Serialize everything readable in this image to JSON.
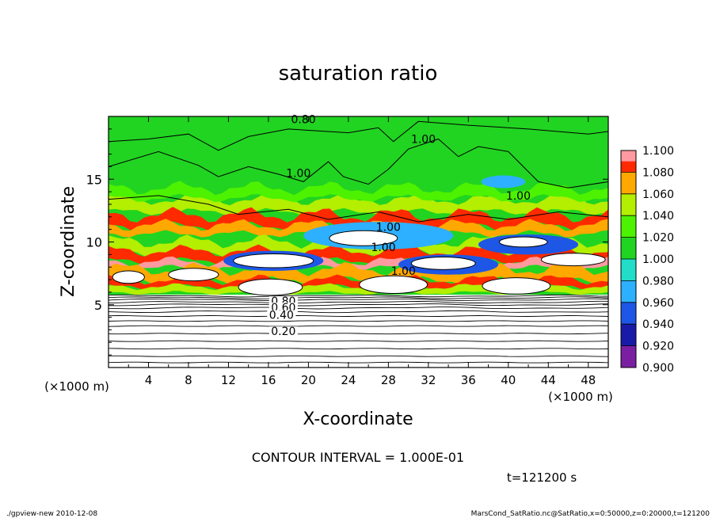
{
  "chart_data": {
    "type": "heatmap",
    "title": "saturation ratio",
    "xlabel": "X-coordinate",
    "ylabel": "Z-coordinate",
    "x_unit": "(×1000 m)",
    "y_unit": "(×1000 m)",
    "xlim": [
      0,
      50
    ],
    "ylim": [
      0,
      20
    ],
    "x_ticks": [
      "4",
      "8",
      "12",
      "16",
      "20",
      "24",
      "28",
      "32",
      "36",
      "40",
      "44",
      "48"
    ],
    "y_ticks": [
      "5",
      "10",
      "15"
    ],
    "colorbar": {
      "levels": [
        "0.900",
        "0.920",
        "0.940",
        "0.960",
        "0.980",
        "1.000",
        "1.020",
        "1.040",
        "1.060",
        "1.080",
        "1.100"
      ],
      "colors": [
        "#7b1fa2",
        "#1a1aa8",
        "#1e56e6",
        "#2db0ff",
        "#22ddc8",
        "#21d421",
        "#4df200",
        "#b4ee00",
        "#ffa800",
        "#ff2a00",
        "#ff9aa0"
      ]
    },
    "contour_labels": [
      {
        "text": "0.80",
        "x": 19.5,
        "z": 19.6
      },
      {
        "text": "1.00",
        "x": 31.5,
        "z": 18.0
      },
      {
        "text": "1.00",
        "x": 19.0,
        "z": 15.3
      },
      {
        "text": "1.00",
        "x": 41.0,
        "z": 13.5
      },
      {
        "text": "1.00",
        "x": 28.0,
        "z": 11.0
      },
      {
        "text": "1.00",
        "x": 27.5,
        "z": 9.4
      },
      {
        "text": "1.00",
        "x": 29.5,
        "z": 7.5
      },
      {
        "text": "0.80",
        "x": 17.5,
        "z": 5.1
      },
      {
        "text": "0.60",
        "x": 17.5,
        "z": 4.6
      },
      {
        "text": "0.40",
        "x": 17.3,
        "z": 4.0
      },
      {
        "text": "0.20",
        "x": 17.5,
        "z": 2.7
      }
    ],
    "contour_interval": "CONTOUR INTERVAL = 1.000E-01",
    "time_label": "t=121200 s"
  },
  "footer": {
    "left": "./gpview-new   2010-12-08",
    "right": "MarsCond_SatRatio.nc@SatRatio,x=0:50000,z=0:20000,t=121200"
  }
}
